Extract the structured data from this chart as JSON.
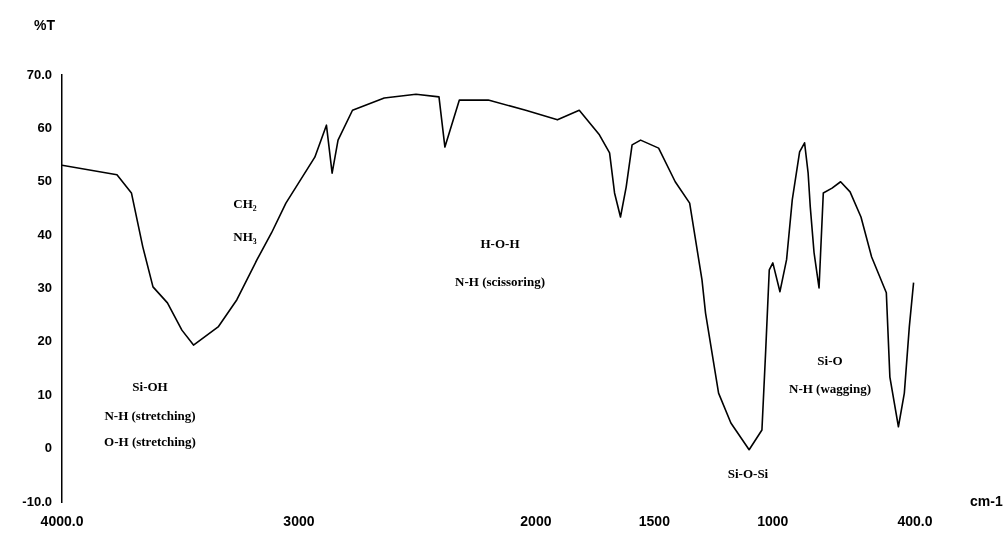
{
  "chart_data": {
    "type": "line",
    "xlabel": "cm-1",
    "ylabel": "%T",
    "x": [
      4000,
      3768,
      3707,
      3659,
      3616,
      3555,
      3494,
      3445,
      3341,
      3262,
      3177,
      3116,
      3055,
      2933,
      2884,
      2860,
      2835,
      2774,
      2640,
      2506,
      2409,
      2384,
      2323,
      2201,
      2043,
      1909,
      1817,
      1732,
      1689,
      1668,
      1643,
      1619,
      1594,
      1558,
      1482,
      1412,
      1351,
      1299,
      1284,
      1229,
      1177,
      1100,
      1046,
      1030,
      1015,
      1000,
      970,
      942,
      918,
      887,
      866,
      851,
      842,
      826,
      805,
      787,
      750,
      714,
      674,
      628,
      583,
      521,
      506,
      470,
      445,
      424,
      406
    ],
    "series": [
      {
        "color": "#000000",
        "values": [
          53.1,
          51.3,
          47.9,
          37.8,
          30.3,
          27.3,
          22.2,
          19.4,
          22.8,
          27.9,
          35.4,
          40.4,
          46,
          54.6,
          60.6,
          51.6,
          57.8,
          63.4,
          65.7,
          66.4,
          65.9,
          56.5,
          65.3,
          65.3,
          63.4,
          61.6,
          63.4,
          58.8,
          55.4,
          47.9,
          43.4,
          49,
          56.9,
          57.8,
          56.3,
          50,
          46,
          31.6,
          25.4,
          10.4,
          4.8,
          -0.2,
          3.5,
          18.5,
          33.5,
          34.8,
          29.4,
          35.4,
          46.6,
          55.6,
          57.3,
          51.6,
          45.3,
          36.7,
          30.1,
          47.9,
          48.8,
          50,
          48.1,
          43.4,
          35.9,
          29.2,
          13.4,
          4.1,
          10.4,
          22.8,
          31.1
        ]
      }
    ],
    "xlim": [
      4000,
      400
    ],
    "xticks": [
      {
        "value": 4000,
        "label": "4000.0"
      },
      3000,
      2000,
      1500,
      1000,
      {
        "value": 400,
        "label": "400.0"
      }
    ],
    "ylim": [
      -10,
      70
    ],
    "yticks": [
      {
        "value": -10,
        "label": "-10.0"
      },
      0,
      10,
      20,
      30,
      40,
      50,
      60,
      {
        "value": 70,
        "label": "70.0"
      }
    ],
    "grid": false,
    "legend": false,
    "marker": "none",
    "line_style": "solid",
    "annotations": [
      "Si-OH",
      "N-H (stretching)",
      "O-H (stretching)",
      "CH₂",
      "NH₃",
      "H-O-H",
      "N-H (scissoring)",
      "Si-O-Si",
      "Si-O",
      "N-H (wagging)"
    ]
  }
}
